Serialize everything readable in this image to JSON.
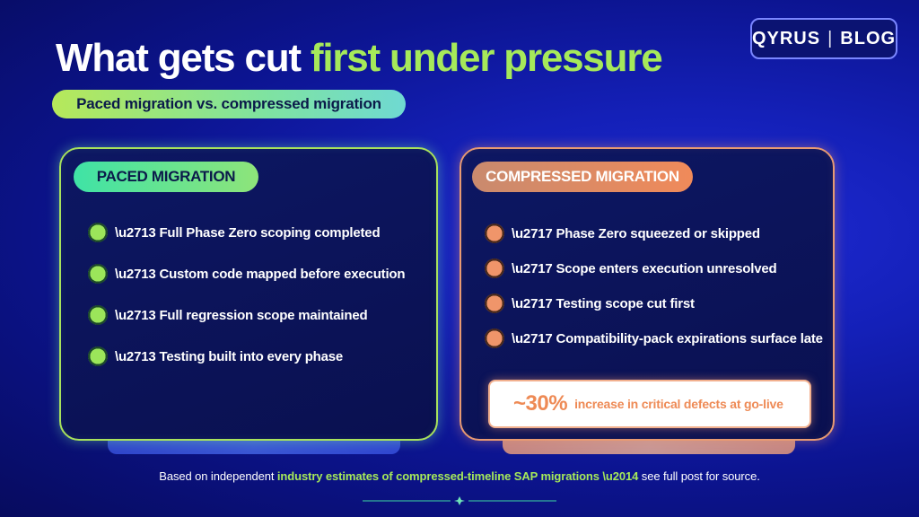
{
  "header": {
    "title_plain": "What gets cut ",
    "title_accent": "first under pressure",
    "subtitle": "Paced migration vs. compressed migration"
  },
  "logo": {
    "brand": "QYRUS",
    "separator": "|",
    "section": "BLOG"
  },
  "paced": {
    "label": "PACED MIGRATION",
    "items": [
      "\\u2713 Full Phase Zero scoping completed",
      "\\u2713 Custom code mapped before execution",
      "\\u2713 Full regression scope maintained",
      "\\u2713 Testing built into every phase"
    ]
  },
  "compressed": {
    "label": "COMPRESSED MIGRATION",
    "items": [
      "\\u2717 Phase Zero squeezed or skipped",
      "\\u2717 Scope enters execution unresolved",
      "\\u2717 Testing scope cut first",
      "\\u2717 Compatibility-pack expirations surface late"
    ],
    "stat": {
      "value": "~30%",
      "label": "increase in critical defects at go-live"
    }
  },
  "footnote": {
    "prefix": "Based on independent ",
    "highlight": "industry estimates of compressed-timeline SAP migrations \\u2014",
    "suffix": " see full post for source."
  },
  "colors": {
    "accent_green": "#a6e95a",
    "accent_orange": "#ee8a55",
    "background": "#1420b8"
  }
}
